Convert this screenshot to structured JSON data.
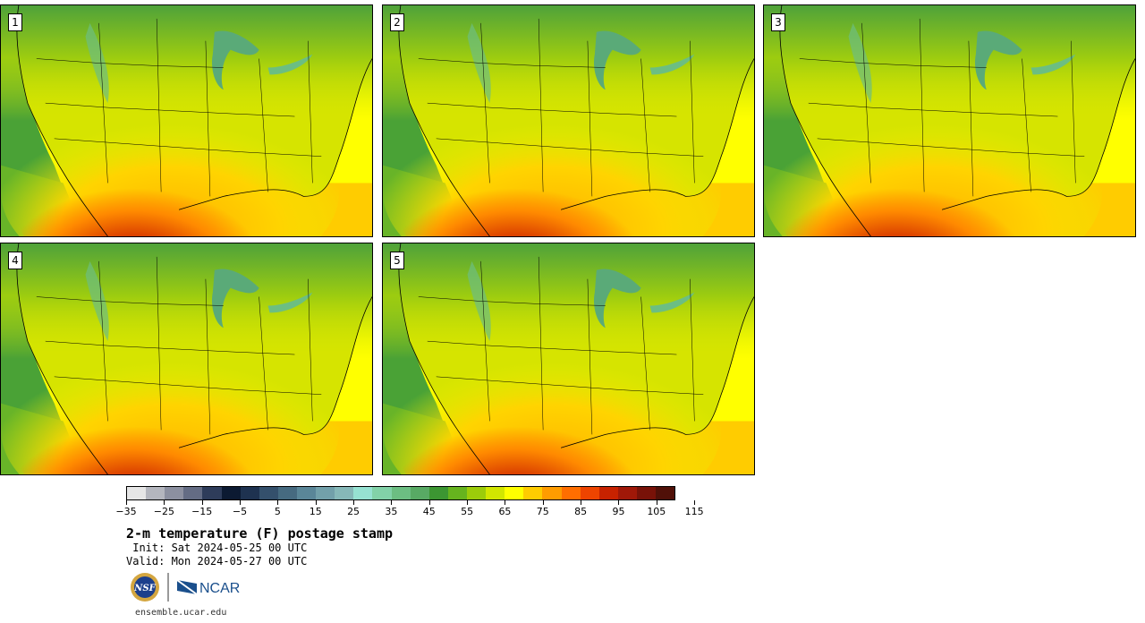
{
  "panels": [
    {
      "label": "1"
    },
    {
      "label": "2"
    },
    {
      "label": "3"
    },
    {
      "label": "4"
    },
    {
      "label": "5"
    }
  ],
  "colorbar": {
    "colors": [
      "#e6e6e6",
      "#b4b6be",
      "#8c90a0",
      "#646c84",
      "#2e3c5a",
      "#0c1a32",
      "#1e3250",
      "#34506c",
      "#466a80",
      "#5a8698",
      "#72a0aa",
      "#86b8b8",
      "#96e2d2",
      "#82d2a8",
      "#6cbe82",
      "#58aa64",
      "#3c9632",
      "#66b41e",
      "#9ccc0a",
      "#d2e600",
      "#ffff00",
      "#ffcc00",
      "#ff9c00",
      "#ff6e00",
      "#ee4400",
      "#c82200",
      "#a01808",
      "#781208",
      "#501008"
    ],
    "tick_labels": [
      "−35",
      "−25",
      "−15",
      "−5",
      "5",
      "15",
      "25",
      "35",
      "45",
      "55",
      "65",
      "75",
      "85",
      "95",
      "105",
      "115"
    ]
  },
  "title": "2-m temperature (F) postage stamp",
  "init_text": " Init: Sat 2024-05-25 00 UTC",
  "valid_text": "Valid: Mon 2024-05-27 00 UTC",
  "logos": {
    "nsf": "NSF",
    "ncar": "NCAR"
  },
  "url": "ensemble.ucar.edu"
}
